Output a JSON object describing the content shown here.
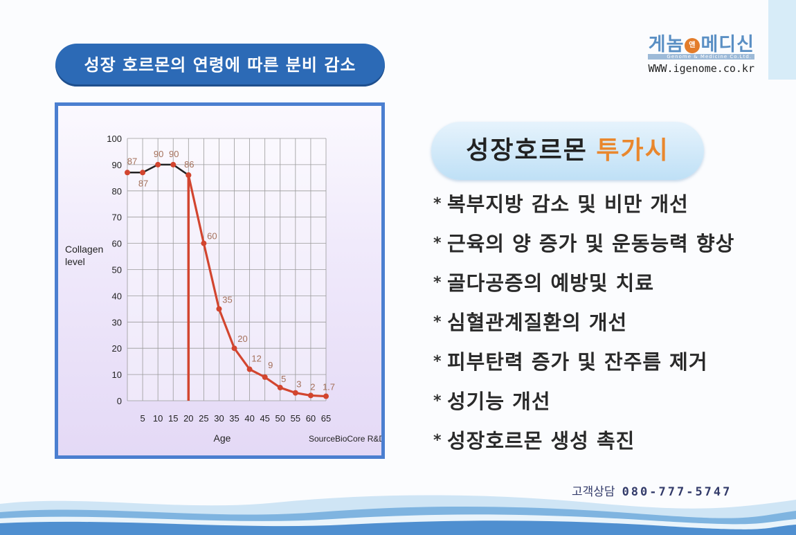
{
  "left_title": "성장 호르몬의 연령에 따른 분비 감소",
  "logo": {
    "name_part1": "게놈",
    "name_mark": "앤",
    "name_part2": "메디신",
    "subtitle": "Genome & Medicine Co.Ltd.",
    "url": "WWW.igenome.co.kr"
  },
  "right_title": {
    "main": "성장호르몬",
    "accent": "투가시"
  },
  "benefits": [
    "복부지방 감소 및 비만 개선",
    "근육의 양 증가 및 운동능력 향상",
    "골다공증의 예방및 치료",
    "심혈관계질환의 개선",
    "피부탄력 증가 및 잔주름 제거",
    "성기능 개선",
    "성장호르몬 생성 촉진"
  ],
  "bullet": "*",
  "contact": {
    "label": "고객상담",
    "phone": "080-777-5747"
  },
  "chart_data": {
    "type": "line",
    "ylabel": "Collagen level",
    "xlabel": "Age",
    "source": "SourceBioCore R&D",
    "ylim": [
      0,
      100
    ],
    "yticks": [
      0,
      10,
      20,
      30,
      40,
      50,
      60,
      70,
      80,
      90,
      100
    ],
    "xlim": [
      0,
      65
    ],
    "xticks": [
      5,
      10,
      15,
      20,
      25,
      30,
      35,
      40,
      45,
      50,
      55,
      60,
      65
    ],
    "grid": true,
    "series": [
      {
        "x": [
          0,
          5,
          10,
          15,
          20
        ],
        "values": [
          87,
          87,
          90,
          90,
          86
        ],
        "labels": [
          "87",
          "87",
          "90",
          "90",
          "86"
        ],
        "color": "#222222"
      },
      {
        "x": [
          20,
          25,
          30,
          35,
          40,
          45,
          50,
          55,
          60,
          65
        ],
        "values": [
          86,
          60,
          35,
          20,
          12,
          9,
          5,
          3,
          2,
          1.7
        ],
        "labels": [
          "",
          "60",
          "35",
          "20",
          "12",
          "9",
          "5",
          "3",
          "2",
          "1.7"
        ],
        "color": "#d2452f"
      }
    ],
    "drop_line_x": 20,
    "marker_color": "#d2452f",
    "label_color": "#a4705a"
  }
}
